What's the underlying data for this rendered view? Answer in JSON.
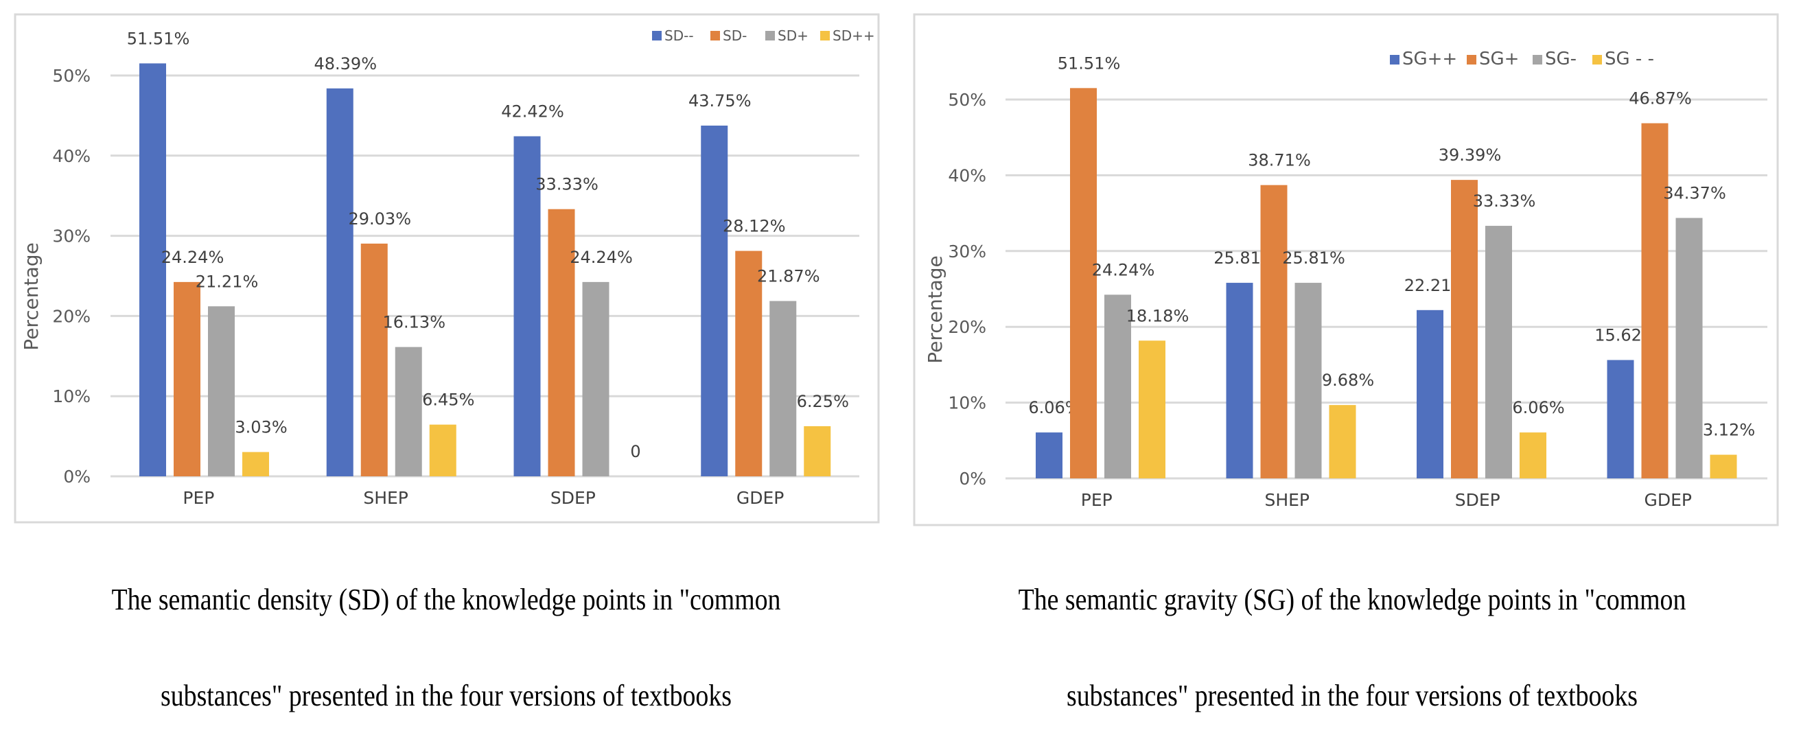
{
  "chart_data": [
    {
      "type": "bar",
      "title": "",
      "xlabel": "",
      "ylabel": "Percentage",
      "ylim": [
        0,
        50
      ],
      "yticks": [
        "0%",
        "10%",
        "20%",
        "30%",
        "40%",
        "50%"
      ],
      "grid": true,
      "legend_position": "top-right",
      "categories": [
        "PEP",
        "SHEP",
        "SDEP",
        "GDEP"
      ],
      "series": [
        {
          "name": "SD--",
          "color": "#5070BE",
          "values": [
            51.51,
            48.39,
            42.42,
            43.75
          ],
          "labels": [
            "51.51%",
            "48.39%",
            "42.42%",
            "43.75%"
          ]
        },
        {
          "name": "SD-",
          "color": "#E0823F",
          "values": [
            24.24,
            29.03,
            33.33,
            28.12
          ],
          "labels": [
            "24.24%",
            "29.03%",
            "33.33%",
            "28.12%"
          ]
        },
        {
          "name": "SD+",
          "color": "#A5A5A5",
          "values": [
            21.21,
            16.13,
            24.24,
            21.87
          ],
          "labels": [
            "21.21%",
            "16.13%",
            "24.24%",
            "21.87%"
          ]
        },
        {
          "name": "SD++",
          "color": "#F5C242",
          "values": [
            3.03,
            6.45,
            0,
            6.25
          ],
          "labels": [
            "3.03%",
            "6.45%",
            "0",
            "6.25%"
          ]
        }
      ],
      "caption": [
        "The semantic density (SD) of the knowledge points in \"common",
        "substances\" presented in the four versions of textbooks"
      ]
    },
    {
      "type": "bar",
      "title": "",
      "xlabel": "",
      "ylabel": "Percentage",
      "ylim": [
        0,
        50
      ],
      "yticks": [
        "0%",
        "10%",
        "20%",
        "30%",
        "40%",
        "50%"
      ],
      "grid": true,
      "legend_position": "top-center",
      "categories": [
        "PEP",
        "SHEP",
        "SDEP",
        "GDEP"
      ],
      "series": [
        {
          "name": "SG++",
          "color": "#5070BE",
          "values": [
            6.06,
            25.81,
            22.21,
            15.62
          ],
          "labels": [
            "6.06%",
            "25.81%",
            "22.21%",
            "15.62%"
          ]
        },
        {
          "name": "SG+",
          "color": "#E0823F",
          "values": [
            51.51,
            38.71,
            39.39,
            46.87
          ],
          "labels": [
            "51.51%",
            "38.71%",
            "39.39%",
            "46.87%"
          ]
        },
        {
          "name": "SG-",
          "color": "#A5A5A5",
          "values": [
            24.24,
            25.81,
            33.33,
            34.37
          ],
          "labels": [
            "24.24%",
            "25.81%",
            "33.33%",
            "34.37%"
          ]
        },
        {
          "name": "SG - -",
          "color": "#F5C242",
          "values": [
            18.18,
            9.68,
            6.06,
            3.12
          ],
          "labels": [
            "18.18%",
            "9.68%",
            "6.06%",
            "3.12%"
          ]
        }
      ],
      "caption": [
        "The semantic gravity (SG) of the knowledge points in \"common",
        "substances\" presented in the four versions of textbooks"
      ]
    }
  ]
}
